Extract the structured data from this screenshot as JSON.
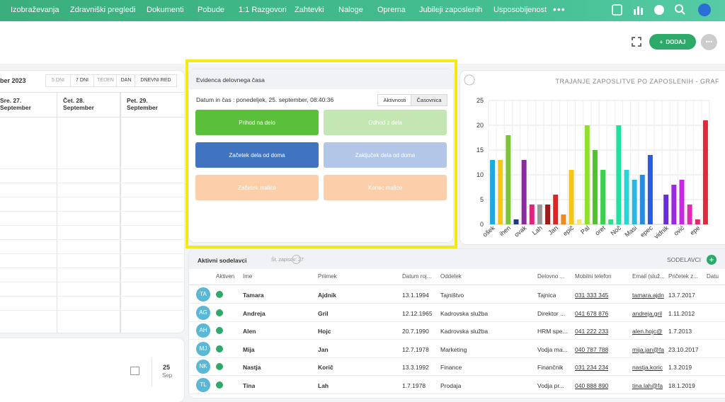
{
  "nav": {
    "items": [
      "Izobraževanja",
      "Zdravniški pregledi",
      "Dokumenti",
      "Pobude",
      "1:1 Razgovori",
      "Zahtevki",
      "Naloge",
      "Oprema",
      "Jubileji zaposlenih",
      "Usposobljenost"
    ]
  },
  "toolbar": {
    "add_button": "DODAJ"
  },
  "calendar": {
    "title": "ber 2023",
    "view_buttons": [
      "5 DNI",
      "7 DNI",
      "TEDEN",
      "DAN",
      "DNEVNI RED"
    ],
    "days": [
      {
        "name": "Sre. 27.",
        "month": "September"
      },
      {
        "name": "Čet. 28.",
        "month": "September"
      },
      {
        "name": "Pet. 29.",
        "month": "September"
      }
    ]
  },
  "birthday": {
    "day": "25",
    "month": "Sep"
  },
  "time_tracking": {
    "title": "Evidenca delovnega časa",
    "datetime": "Datum in čas : ponedeljek, 25. september, 08:40:36",
    "tabs": [
      "Aktivnosti",
      "Časovnica"
    ],
    "buttons": [
      "Prihod na delo",
      "Odhod z dela",
      "Začetek dela od doma",
      "Zaključek dela od doma",
      "Začetek malice",
      "Konec malice"
    ]
  },
  "chart": {
    "type": "bar",
    "title": "TRAJANJE ZAPOSLITVE PO ZAPOSLENIH - GRAF",
    "categories": [
      "ošek",
      null,
      "ihen",
      null,
      "ovak",
      null,
      "Lah",
      null,
      "Jan",
      null,
      "epič",
      null,
      "Pal",
      null,
      "oret",
      null,
      "Noč",
      null,
      "Masi",
      null,
      "epec",
      null,
      "vidnik",
      null,
      "ović",
      null,
      "epe",
      null
    ],
    "values": [
      13,
      13,
      18,
      1,
      13,
      4,
      4,
      4,
      6,
      2,
      11,
      1,
      20,
      15,
      11,
      1,
      20,
      11,
      9,
      10,
      14,
      0,
      6,
      8,
      9,
      4,
      1,
      21
    ],
    "colors": [
      "#1fa9e0",
      "#f5c518",
      "#7cc23a",
      "#1f3a7a",
      "#8a2a9e",
      "#e0247e",
      "#9a9a9a",
      "#9b1c1c",
      "#e02424",
      "#f08a24",
      "#f5c518",
      "#f5e67a",
      "#8fe02a",
      "#4cc42a",
      "#3ecf4f",
      "#2ee08a",
      "#22e0a0",
      "#2ad4d4",
      "#2ab8e0",
      "#2a8ae0",
      "#2a5ae0",
      "#2a2ab0",
      "#6a2ae0",
      "#9a2ae0",
      "#c42ae0",
      "#e02ab0",
      "#e02a6a",
      "#e02a3a"
    ],
    "ylim": [
      0,
      25
    ],
    "yticks": [
      0,
      5,
      10,
      15,
      20,
      25
    ],
    "grid": true
  },
  "employees": {
    "title": "Aktivni sodelavci",
    "count": "Št. zapisov: 27",
    "link": "SODELAVCI",
    "columns": [
      "Aktiven",
      "Ime",
      "Priimek",
      "Datum roj...",
      "Oddelek",
      "Delovno ...",
      "Mobilni telefon",
      "Email (služ...",
      "Pričetek z...",
      "Datu"
    ],
    "rows": [
      {
        "initials": "TA",
        "cells": [
          "Tamara",
          "Ajdnik",
          "13.1.1994",
          "Tajništvo",
          "Tajnica",
          "031 333 345",
          "tamara.ajdn",
          "13.7.2017"
        ]
      },
      {
        "initials": "AG",
        "cells": [
          "Andreja",
          "Gril",
          "12.12.1965",
          "Kadrovska služba",
          "Direktor ...",
          "041 678 876",
          "andreja.gril",
          "1.11.2012"
        ]
      },
      {
        "initials": "AH",
        "cells": [
          "Alen",
          "Hojc",
          "20.7.1990",
          "Kadrovska služba",
          "HRM spe...",
          "041 222 233",
          "alen.hojc@",
          "1.7.2013"
        ]
      },
      {
        "initials": "MJ",
        "cells": [
          "Mija",
          "Jan",
          "12.7.1978",
          "Marketing",
          "Vodja ma...",
          "040 787 788",
          "mija.jan@fa",
          "23.10.2017"
        ]
      },
      {
        "initials": "NK",
        "cells": [
          "Nastja",
          "Korič",
          "13.3.1992",
          "Finance",
          "Finančnik",
          "031 234 234",
          "nastja.koric",
          "1.3.2019"
        ]
      },
      {
        "initials": "TL",
        "cells": [
          "Tina",
          "Lah",
          "1.7.1978",
          "Prodaja",
          "Vodja pr...",
          "040 888 890",
          "tina.lah@fa",
          "18.1.2019"
        ]
      }
    ]
  }
}
